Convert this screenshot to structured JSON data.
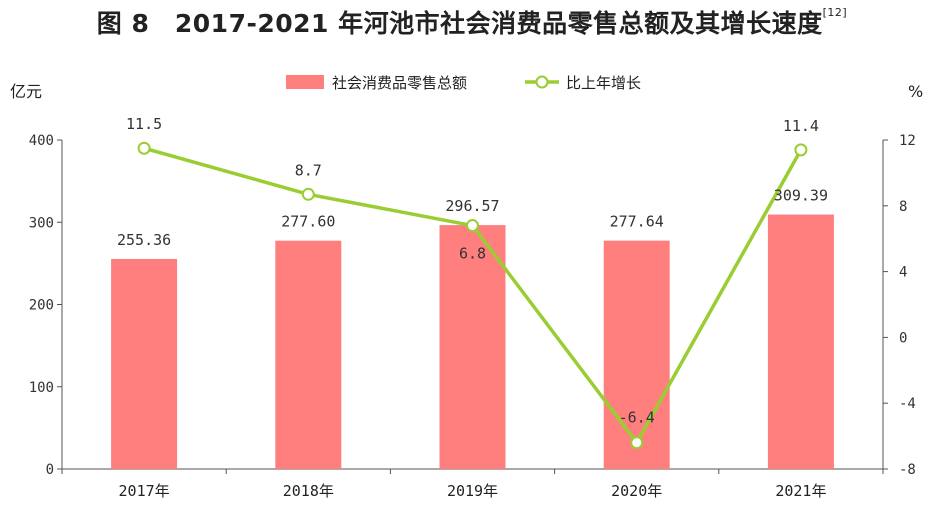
{
  "title": {
    "text": "图 8　2017-2021 年河池市社会消费品零售总额及其增长速度",
    "ref": "[12]"
  },
  "chart_data": {
    "type": "bar",
    "categories": [
      "2017年",
      "2018年",
      "2019年",
      "2020年",
      "2021年"
    ],
    "series": [
      {
        "name": "社会消费品零售总额",
        "type": "bar",
        "axis": "left",
        "color": "#ff7f7f",
        "values": [
          255.36,
          277.6,
          296.57,
          277.64,
          309.39
        ],
        "labels": [
          "255.36",
          "277.60",
          "296.57",
          "277.64",
          "309.39"
        ]
      },
      {
        "name": "比上年增长",
        "type": "line",
        "axis": "right",
        "color": "#9acd32",
        "values": [
          11.5,
          8.7,
          6.8,
          -6.4,
          11.4
        ],
        "labels": [
          "11.5",
          "8.7",
          "6.8",
          "-6.4",
          "11.4"
        ]
      }
    ],
    "y_left": {
      "unit": "亿元",
      "range": [
        0,
        400
      ],
      "ticks": [
        0,
        100,
        200,
        300,
        400
      ]
    },
    "y_right": {
      "unit": "%",
      "range": [
        -8,
        12
      ],
      "ticks": [
        -8,
        -4,
        0,
        4,
        8,
        12
      ]
    },
    "legend_position": "top-center",
    "grid": false
  }
}
